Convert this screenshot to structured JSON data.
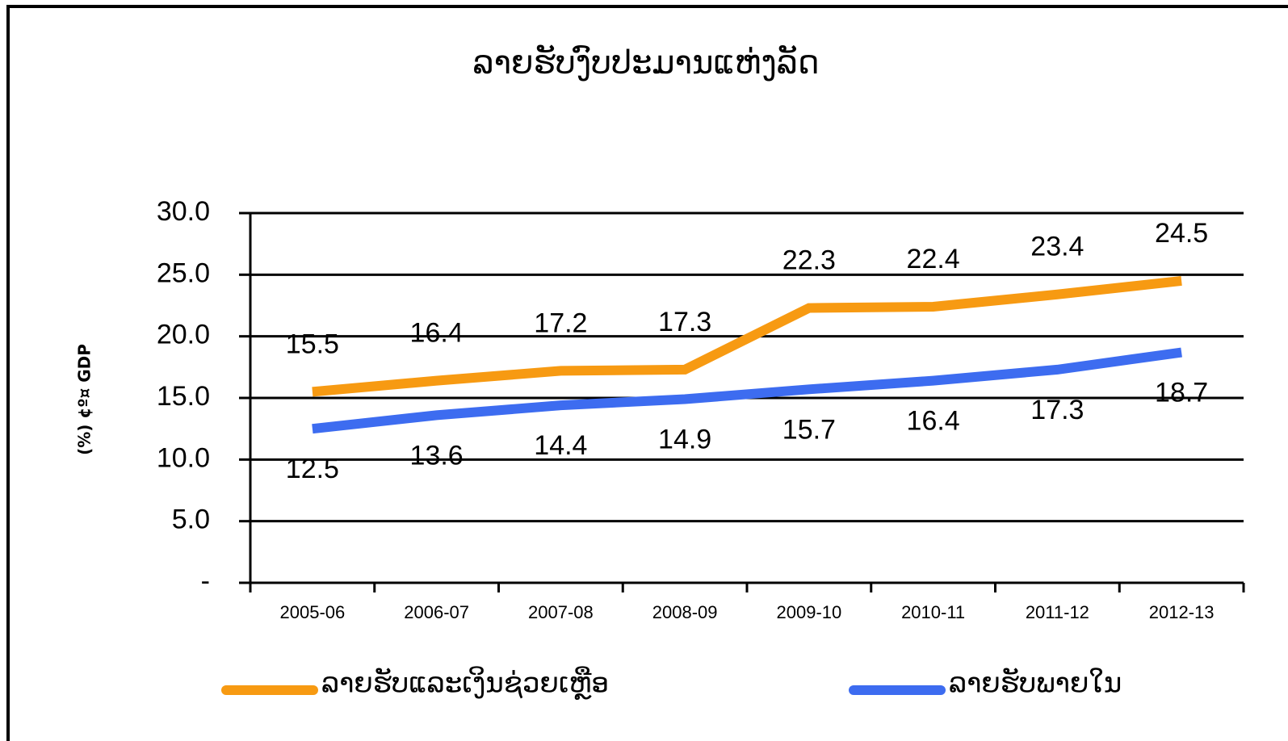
{
  "chart_data": {
    "type": "line",
    "title": "ລາຍຮັບງົບປະມານແຫ່ງລັດ",
    "y_label": "(%) ¢º¤ GDP",
    "categories": [
      "2005-06",
      "2006-07",
      "2007-08",
      "2008-09",
      "2009-10",
      "2010-11",
      "2011-12",
      "2012-13"
    ],
    "series": [
      {
        "name": "ລາຍຮັບແລະເງິນຊ່ວຍເຫຼືອ",
        "color": "#f79a12",
        "values": [
          15.5,
          16.4,
          17.2,
          17.3,
          22.3,
          22.4,
          23.4,
          24.5
        ]
      },
      {
        "name": "ລາຍຮັບພາຍໃນ",
        "color": "#3d6cf0",
        "values": [
          12.5,
          13.6,
          14.4,
          14.9,
          15.7,
          16.4,
          17.3,
          18.7
        ]
      }
    ],
    "ylim": [
      0,
      30
    ],
    "yticks": [
      {
        "value": 0,
        "label": "-"
      },
      {
        "value": 5,
        "label": "5.0"
      },
      {
        "value": 10,
        "label": "10.0"
      },
      {
        "value": 15,
        "label": "15.0"
      },
      {
        "value": 20,
        "label": "20.0"
      },
      {
        "value": 25,
        "label": "25.0"
      },
      {
        "value": 30,
        "label": "30.0"
      }
    ],
    "grid": true
  }
}
